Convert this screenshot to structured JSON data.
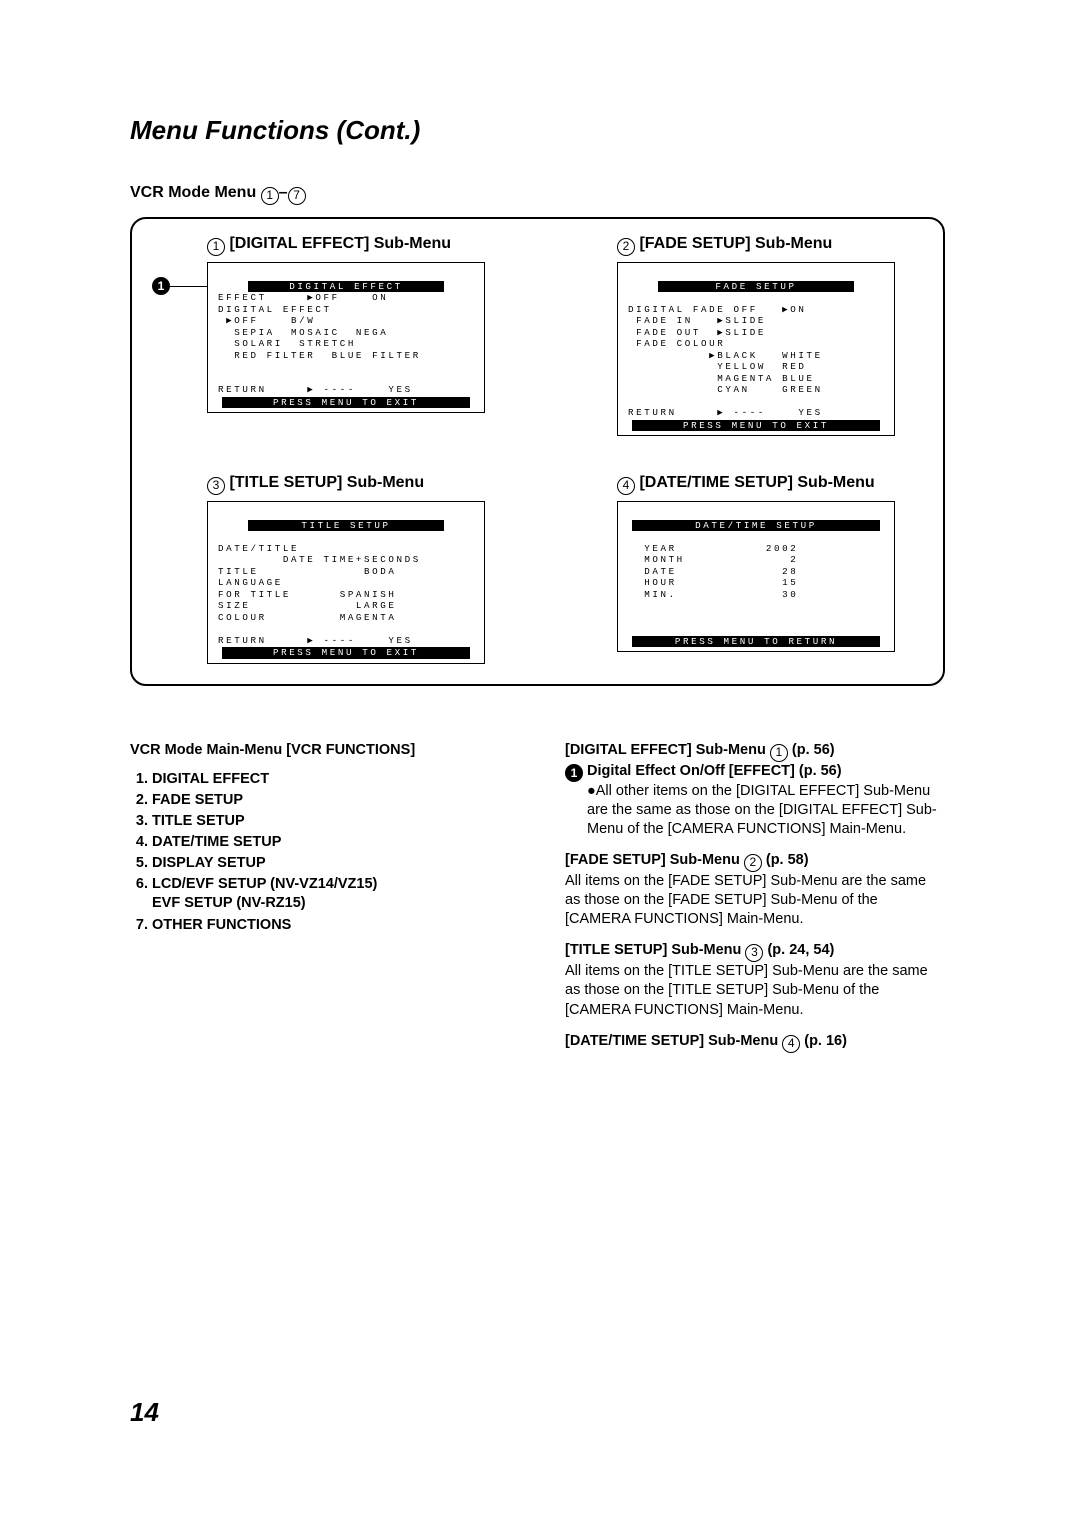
{
  "page": {
    "title": "Menu Functions (Cont.)",
    "section_header_prefix": "VCR Mode Menu ",
    "range_sep": "–",
    "range_a": "1",
    "range_b": "7",
    "number": "14"
  },
  "menus": {
    "m1": {
      "num": "1",
      "title": " [DIGITAL EFFECT] Sub-Menu",
      "header": "DIGITAL EFFECT",
      "body": "EFFECT     ▶OFF    ON\nDIGITAL EFFECT\n ▶OFF    B/W\n  SEPIA  MOSAIC  NEGA\n  SOLARI  STRETCH\n  RED FILTER  BLUE FILTER\n\n\nRETURN     ▶ ----    YES",
      "footer": "PRESS MENU TO EXIT",
      "callout": "1"
    },
    "m2": {
      "num": "2",
      "title": " [FADE SETUP] Sub-Menu",
      "header": "FADE SETUP",
      "body": "DIGITAL FADE OFF   ▶ON\n FADE IN   ▶SLIDE\n FADE OUT  ▶SLIDE\n FADE COLOUR\n          ▶BLACK   WHITE\n           YELLOW  RED\n           MAGENTA BLUE\n           CYAN    GREEN\n\nRETURN     ▶ ----    YES",
      "footer": "PRESS MENU TO EXIT"
    },
    "m3": {
      "num": "3",
      "title": " [TITLE SETUP] Sub-Menu",
      "header": "TITLE SETUP",
      "body": "DATE/TITLE\n        DATE TIME+SECONDS\nTITLE             BODA\nLANGUAGE\nFOR TITLE      SPANISH\nSIZE             LARGE\nCOLOUR         MAGENTA\n\nRETURN     ▶ ----    YES",
      "footer": "PRESS MENU TO EXIT"
    },
    "m4": {
      "num": "4",
      "title": " [DATE/TIME SETUP] Sub-Menu",
      "header": "DATE/TIME SETUP",
      "body": "\n  YEAR           2002\n  MONTH             2\n  DATE             28\n  HOUR             15\n  MIN.             30\n\n\n",
      "footer": "PRESS MENU TO RETURN"
    }
  },
  "left": {
    "heading": "VCR Mode Main-Menu [VCR FUNCTIONS]",
    "items": [
      "DIGITAL EFFECT",
      "FADE SETUP",
      "TITLE SETUP",
      "DATE/TIME SETUP",
      "DISPLAY SETUP",
      "LCD/EVF SETUP (NV-VZ14/VZ15)",
      "OTHER FUNCTIONS"
    ],
    "item6_sub": "EVF SETUP (NV-RZ15)"
  },
  "right": {
    "p1": {
      "h_pre": "[DIGITAL EFFECT] Sub-Menu ",
      "h_num": "1",
      "h_post": " (p. 56)",
      "sub_num": "1",
      "sub_text": " Digital Effect On/Off [EFFECT] (p. 56)",
      "bullet": "●",
      "body": "All other items on the [DIGITAL EFFECT] Sub-Menu are the same as those on the [DIGITAL EFFECT] Sub-Menu of the [CAMERA FUNCTIONS] Main-Menu."
    },
    "p2": {
      "h_pre": "[FADE SETUP] Sub-Menu ",
      "h_num": "2",
      "h_post": " (p. 58)",
      "body": "All items on the [FADE SETUP] Sub-Menu are the same as those on the [FADE SETUP] Sub-Menu of the [CAMERA FUNCTIONS] Main-Menu."
    },
    "p3": {
      "h_pre": "[TITLE SETUP] Sub-Menu ",
      "h_num": "3",
      "h_post": " (p. 24, 54)",
      "body": "All items on the [TITLE SETUP] Sub-Menu are the same as those on the [TITLE SETUP] Sub-Menu of the [CAMERA FUNCTIONS] Main-Menu."
    },
    "p4": {
      "h_pre": "[DATE/TIME SETUP] Sub-Menu ",
      "h_num": "4",
      "h_post": " (p. 16)"
    }
  }
}
